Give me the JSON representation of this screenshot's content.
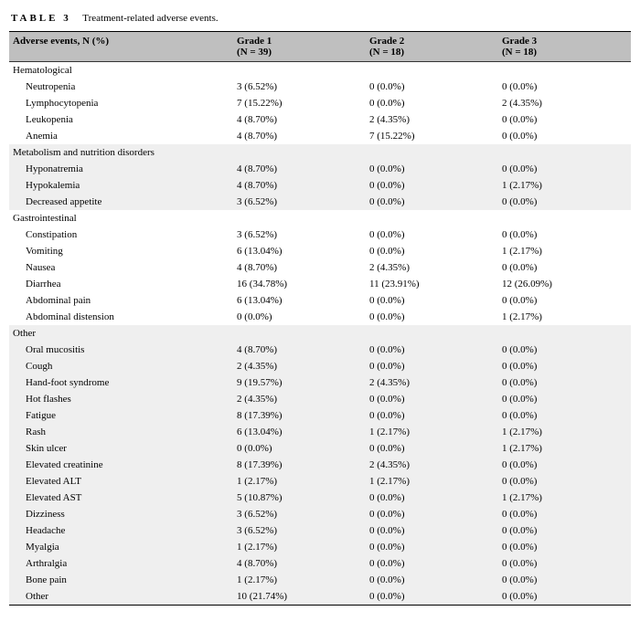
{
  "caption": {
    "label": "TABLE 3",
    "text": "Treatment-related adverse events."
  },
  "header": {
    "col0_top": "",
    "col0_bot": "Adverse events, N (%)",
    "col1_top": "Grade 1",
    "col1_bot": "(N = 39)",
    "col2_top": "Grade 2",
    "col2_bot": "(N = 18)",
    "col3_top": "Grade 3",
    "col3_bot": "(N = 18)"
  },
  "sections": [
    {
      "title": "Hematological",
      "shaded": false,
      "rows": [
        {
          "name": "Neutropenia",
          "g1": "3 (6.52%)",
          "g2": "0 (0.0%)",
          "g3": "0 (0.0%)"
        },
        {
          "name": "Lymphocytopenia",
          "g1": "7 (15.22%)",
          "g2": "0 (0.0%)",
          "g3": "2 (4.35%)"
        },
        {
          "name": "Leukopenia",
          "g1": "4 (8.70%)",
          "g2": "2 (4.35%)",
          "g3": "0 (0.0%)"
        },
        {
          "name": "Anemia",
          "g1": "4 (8.70%)",
          "g2": "7 (15.22%)",
          "g3": "0 (0.0%)"
        }
      ]
    },
    {
      "title": "Metabolism and nutrition disorders",
      "shaded": true,
      "rows": [
        {
          "name": "Hyponatremia",
          "g1": "4 (8.70%)",
          "g2": "0 (0.0%)",
          "g3": "0 (0.0%)"
        },
        {
          "name": "Hypokalemia",
          "g1": "4 (8.70%)",
          "g2": "0 (0.0%)",
          "g3": "1 (2.17%)"
        },
        {
          "name": "Decreased appetite",
          "g1": "3 (6.52%)",
          "g2": "0 (0.0%)",
          "g3": "0 (0.0%)"
        }
      ]
    },
    {
      "title": "Gastrointestinal",
      "shaded": false,
      "rows": [
        {
          "name": "Constipation",
          "g1": "3 (6.52%)",
          "g2": "0 (0.0%)",
          "g3": "0 (0.0%)"
        },
        {
          "name": "Vomiting",
          "g1": "6 (13.04%)",
          "g2": "0 (0.0%)",
          "g3": "1 (2.17%)"
        },
        {
          "name": "Nausea",
          "g1": "4 (8.70%)",
          "g2": "2 (4.35%)",
          "g3": "0 (0.0%)"
        },
        {
          "name": "Diarrhea",
          "g1": "16 (34.78%)",
          "g2": "11 (23.91%)",
          "g3": "12 (26.09%)"
        },
        {
          "name": "Abdominal pain",
          "g1": "6 (13.04%)",
          "g2": "0 (0.0%)",
          "g3": "0 (0.0%)"
        },
        {
          "name": "Abdominal distension",
          "g1": "0 (0.0%)",
          "g2": "0 (0.0%)",
          "g3": "1 (2.17%)"
        }
      ]
    },
    {
      "title": "Other",
      "shaded": true,
      "rows": [
        {
          "name": "Oral mucositis",
          "g1": "4 (8.70%)",
          "g2": "0 (0.0%)",
          "g3": "0 (0.0%)"
        },
        {
          "name": "Cough",
          "g1": "2 (4.35%)",
          "g2": "0 (0.0%)",
          "g3": "0 (0.0%)"
        },
        {
          "name": "Hand-foot syndrome",
          "g1": "9 (19.57%)",
          "g2": "2 (4.35%)",
          "g3": "0 (0.0%)"
        },
        {
          "name": "Hot flashes",
          "g1": "2 (4.35%)",
          "g2": "0 (0.0%)",
          "g3": "0 (0.0%)"
        },
        {
          "name": "Fatigue",
          "g1": "8 (17.39%)",
          "g2": "0 (0.0%)",
          "g3": "0 (0.0%)"
        },
        {
          "name": "Rash",
          "g1": "6 (13.04%)",
          "g2": "1 (2.17%)",
          "g3": "1 (2.17%)"
        },
        {
          "name": "Skin ulcer",
          "g1": "0 (0.0%)",
          "g2": "0 (0.0%)",
          "g3": "1 (2.17%)"
        },
        {
          "name": "Elevated creatinine",
          "g1": "8 (17.39%)",
          "g2": "2 (4.35%)",
          "g3": "0 (0.0%)"
        },
        {
          "name": "Elevated ALT",
          "g1": "1 (2.17%)",
          "g2": "1 (2.17%)",
          "g3": "0 (0.0%)"
        },
        {
          "name": "Elevated AST",
          "g1": "5 (10.87%)",
          "g2": "0 (0.0%)",
          "g3": "1 (2.17%)"
        },
        {
          "name": "Dizziness",
          "g1": "3 (6.52%)",
          "g2": "0 (0.0%)",
          "g3": "0 (0.0%)"
        },
        {
          "name": "Headache",
          "g1": "3 (6.52%)",
          "g2": "0 (0.0%)",
          "g3": "0 (0.0%)"
        },
        {
          "name": "Myalgia",
          "g1": "1 (2.17%)",
          "g2": "0 (0.0%)",
          "g3": "0 (0.0%)"
        },
        {
          "name": "Arthralgia",
          "g1": "4 (8.70%)",
          "g2": "0 (0.0%)",
          "g3": "0 (0.0%)"
        },
        {
          "name": "Bone pain",
          "g1": "1 (2.17%)",
          "g2": "0 (0.0%)",
          "g3": "0 (0.0%)"
        },
        {
          "name": "Other",
          "g1": "10 (21.74%)",
          "g2": "0 (0.0%)",
          "g3": "0 (0.0%)"
        }
      ]
    }
  ]
}
